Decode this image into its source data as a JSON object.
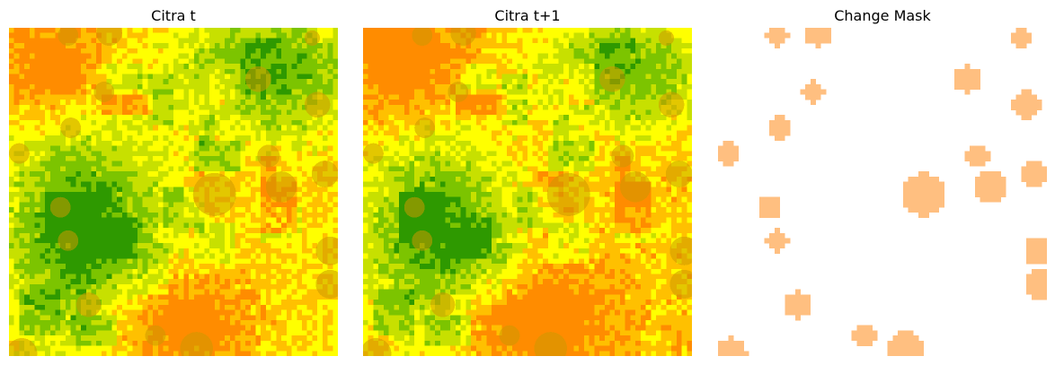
{
  "panels": [
    {
      "title": "Citra t"
    },
    {
      "title": "Citra t+1"
    },
    {
      "title": "Change Mask"
    }
  ],
  "colors": {
    "green_dark": "#2e9900",
    "green": "#7cc400",
    "yellow_green": "#c7e000",
    "yellow": "#ffff00",
    "orange_light": "#ffc000",
    "orange": "#ff8c00",
    "blob_overlay": "#cc9900",
    "mask_fill": "#ffbf80",
    "mask_background": "#ffffff"
  }
}
